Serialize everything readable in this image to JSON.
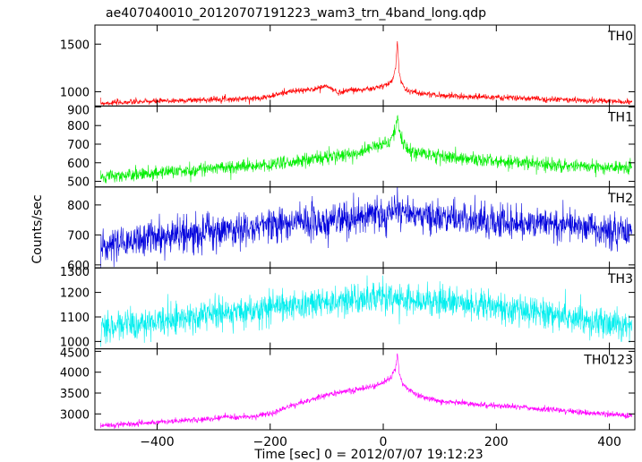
{
  "chart_data": {
    "type": "line",
    "title": "ae407040010_20120707191223_wam3_trn_4band_long.qdp",
    "xlabel": "Time [sec] 0 = 2012/07/07 19:12:23",
    "ylabel": "Counts/sec",
    "xlim": [
      -510,
      445
    ],
    "x_ticks": [
      -400,
      -200,
      0,
      200,
      400
    ],
    "x_tick_labels": [
      "−400",
      "−200",
      "0",
      "200",
      "400"
    ],
    "grid": false,
    "panels": [
      {
        "name": "TH0",
        "color": "#ff0000",
        "ylim": [
          850,
          1700
        ],
        "y_ticks": [
          1000,
          1500
        ],
        "y_tick_labels": [
          "1000",
          "1500"
        ],
        "noise": 15,
        "x": [
          -500,
          -300,
          -280,
          -270,
          -230,
          -200,
          -170,
          -130,
          -100,
          -80,
          -60,
          -40,
          -20,
          0,
          10,
          18,
          22,
          25,
          28,
          32,
          40,
          60,
          100,
          150,
          200,
          300,
          400,
          440
        ],
        "y": [
          880,
          920,
          930,
          920,
          930,
          950,
          1000,
          1020,
          1060,
          990,
          1020,
          1020,
          1030,
          1060,
          1080,
          1150,
          1250,
          1550,
          1200,
          1100,
          1020,
          990,
          960,
          950,
          940,
          920,
          900,
          890
        ]
      },
      {
        "name": "TH1",
        "color": "#00ee00",
        "ylim": [
          470,
          905
        ],
        "y_ticks": [
          500,
          600,
          700,
          800,
          900
        ],
        "y_tick_labels": [
          "500",
          "600",
          "700",
          "800",
          "900"
        ],
        "noise": 18,
        "x": [
          -500,
          -400,
          -300,
          -200,
          -100,
          -50,
          0,
          15,
          22,
          25,
          28,
          35,
          50,
          100,
          200,
          300,
          440
        ],
        "y": [
          520,
          545,
          570,
          590,
          630,
          650,
          700,
          730,
          780,
          860,
          760,
          700,
          660,
          640,
          610,
          590,
          570
        ]
      },
      {
        "name": "TH2",
        "color": "#0000dd",
        "ylim": [
          590,
          860
        ],
        "y_ticks": [
          600,
          700,
          800
        ],
        "y_tick_labels": [
          "600",
          "700",
          "800"
        ],
        "noise": 28,
        "x": [
          -500,
          -400,
          -300,
          -200,
          -100,
          0,
          20,
          100,
          200,
          300,
          440
        ],
        "y": [
          665,
          690,
          710,
          730,
          745,
          770,
          780,
          760,
          745,
          735,
          705
        ]
      },
      {
        "name": "TH3",
        "color": "#00eeee",
        "ylim": [
          970,
          1300
        ],
        "y_ticks": [
          1000,
          1100,
          1200,
          1300
        ],
        "y_tick_labels": [
          "1000",
          "1100",
          "1200",
          "1300"
        ],
        "noise": 32,
        "x": [
          -500,
          -400,
          -300,
          -200,
          -100,
          0,
          100,
          200,
          300,
          440
        ],
        "y": [
          1060,
          1080,
          1110,
          1140,
          1160,
          1175,
          1165,
          1140,
          1110,
          1060
        ]
      },
      {
        "name": "TH0123",
        "color": "#ff00ff",
        "ylim": [
          2620,
          4560
        ],
        "y_ticks": [
          3000,
          3500,
          4000,
          4500
        ],
        "y_tick_labels": [
          "3000",
          "3500",
          "4000",
          "4500"
        ],
        "noise": 35,
        "x": [
          -500,
          -400,
          -300,
          -280,
          -270,
          -230,
          -200,
          -150,
          -100,
          -60,
          -20,
          0,
          15,
          22,
          25,
          28,
          35,
          60,
          100,
          200,
          300,
          440
        ],
        "y": [
          2720,
          2800,
          2880,
          2950,
          2900,
          2950,
          3000,
          3250,
          3450,
          3550,
          3650,
          3750,
          3900,
          4100,
          4450,
          4000,
          3700,
          3450,
          3300,
          3200,
          3100,
          2950
        ]
      }
    ]
  }
}
